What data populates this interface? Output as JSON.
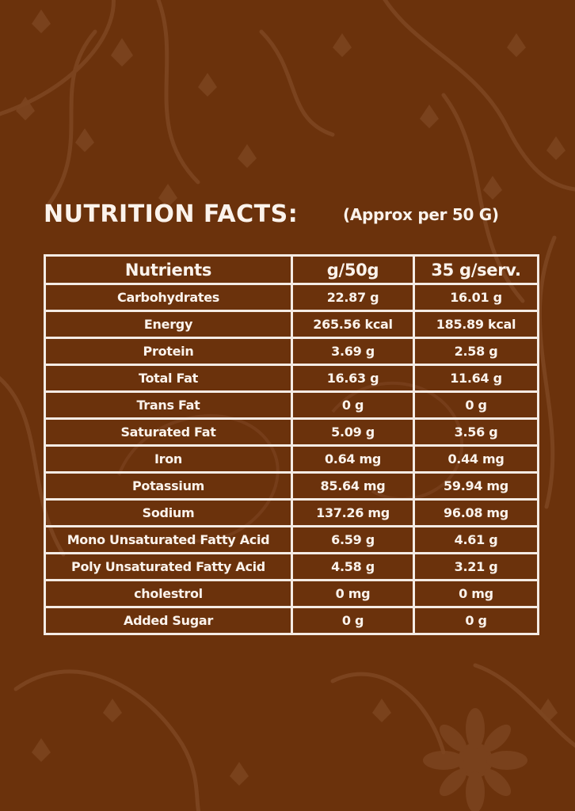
{
  "title": "NUTRITION FACTS:",
  "subtitle": "(Approx per 50 G)",
  "table": {
    "headers": [
      "Nutrients",
      "g/50g",
      "35 g/serv."
    ],
    "rows": [
      [
        "Carbohydrates",
        "22.87 g",
        "16.01 g"
      ],
      [
        "Energy",
        "265.56 kcal",
        "185.89 kcal"
      ],
      [
        "Protein",
        "3.69 g",
        "2.58 g"
      ],
      [
        "Total Fat",
        "16.63 g",
        "11.64 g"
      ],
      [
        "Trans Fat",
        "0 g",
        "0 g"
      ],
      [
        "Saturated Fat",
        "5.09 g",
        "3.56 g"
      ],
      [
        "Iron",
        "0.64 mg",
        "0.44 mg"
      ],
      [
        "Potassium",
        "85.64 mg",
        "59.94 mg"
      ],
      [
        "Sodium",
        "137.26 mg",
        "96.08 mg"
      ],
      [
        "Mono Unsaturated Fatty Acid",
        "6.59 g",
        "4.61 g"
      ],
      [
        "Poly Unsaturated Fatty Acid",
        "4.58 g",
        "3.21 g"
      ],
      [
        "cholestrol",
        "0 mg",
        "0 mg"
      ],
      [
        "Added Sugar",
        "0 g",
        "0 g"
      ]
    ]
  },
  "colors": {
    "background": "#6b320c",
    "text": "#fbf3ec",
    "border": "#f4ebe4"
  }
}
